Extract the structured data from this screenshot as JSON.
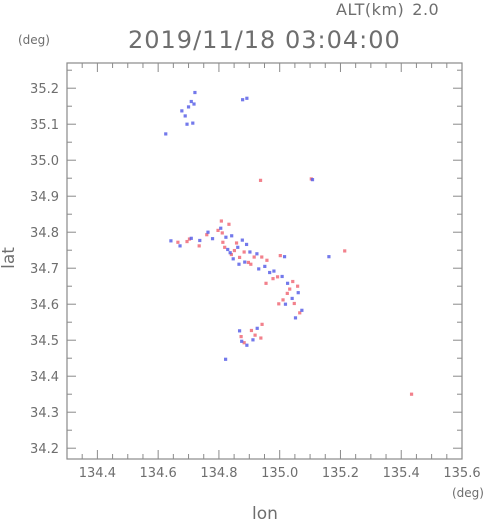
{
  "header": {
    "alt_label": "ALT(km)",
    "alt_value": "2.0",
    "datetime": "2019/11/18 03:04:00"
  },
  "axes": {
    "x_unit": "(deg)",
    "y_unit": "(deg)"
  },
  "chart_data": {
    "type": "scatter",
    "xlabel": "lon",
    "ylabel": "lat",
    "xlim": [
      134.3,
      135.6
    ],
    "ylim": [
      34.17,
      35.27
    ],
    "xticks": [
      134.4,
      134.6,
      134.8,
      135.0,
      135.2,
      135.4,
      135.6
    ],
    "xtick_labels": [
      "134.4",
      "134.6",
      "134.8",
      "135.0",
      "135.2",
      "135.4",
      "135.6"
    ],
    "yticks": [
      34.2,
      34.3,
      34.4,
      34.5,
      34.6,
      34.7,
      34.8,
      34.9,
      35.0,
      35.1,
      35.2
    ],
    "ytick_labels": [
      "34.2",
      "34.3",
      "34.4",
      "34.5",
      "34.6",
      "34.7",
      "34.8",
      "34.9",
      "35.0",
      "35.1",
      "35.2"
    ],
    "grid": false,
    "colors": {
      "positive": "#f06b78",
      "negative": "#5a62e8",
      "frame": "#8a8a8a"
    },
    "series": [
      {
        "color": "positive",
        "points": [
          [
            134.695,
            34.774
          ],
          [
            134.703,
            34.781
          ],
          [
            134.735,
            34.762
          ],
          [
            134.76,
            34.793
          ],
          [
            134.797,
            34.805
          ],
          [
            134.808,
            34.831
          ],
          [
            134.811,
            34.798
          ],
          [
            134.813,
            34.772
          ],
          [
            134.819,
            34.758
          ],
          [
            134.833,
            34.822
          ],
          [
            134.841,
            34.738
          ],
          [
            134.851,
            34.749
          ],
          [
            134.858,
            34.77
          ],
          [
            134.868,
            34.73
          ],
          [
            134.883,
            34.745
          ],
          [
            134.897,
            34.716
          ],
          [
            134.905,
            34.711
          ],
          [
            134.916,
            34.731
          ],
          [
            134.941,
            34.731
          ],
          [
            134.958,
            34.722
          ],
          [
            134.978,
            34.671
          ],
          [
            134.993,
            34.676
          ],
          [
            134.997,
            34.601
          ],
          [
            135.011,
            34.612
          ],
          [
            135.025,
            34.63
          ],
          [
            135.033,
            34.642
          ],
          [
            135.043,
            34.663
          ],
          [
            135.048,
            34.602
          ],
          [
            135.059,
            34.65
          ],
          [
            135.066,
            34.576
          ],
          [
            135.002,
            34.735
          ],
          [
            134.873,
            34.51
          ],
          [
            134.883,
            34.493
          ],
          [
            134.907,
            34.527
          ],
          [
            134.919,
            34.514
          ],
          [
            134.938,
            34.506
          ],
          [
            134.942,
            34.544
          ],
          [
            134.937,
            34.944
          ],
          [
            135.104,
            34.948
          ],
          [
            135.434,
            34.35
          ],
          [
            135.214,
            34.748
          ],
          [
            134.665,
            34.772
          ],
          [
            134.955,
            34.658
          ]
        ]
      },
      {
        "color": "negative",
        "points": [
          [
            134.678,
            35.137
          ],
          [
            134.689,
            35.123
          ],
          [
            134.7,
            35.148
          ],
          [
            134.709,
            35.163
          ],
          [
            134.718,
            35.156
          ],
          [
            134.721,
            35.188
          ],
          [
            134.714,
            35.103
          ],
          [
            134.695,
            35.1
          ],
          [
            134.878,
            35.168
          ],
          [
            134.892,
            35.172
          ],
          [
            134.625,
            35.073
          ],
          [
            134.642,
            34.776
          ],
          [
            134.672,
            34.762
          ],
          [
            134.709,
            34.783
          ],
          [
            134.737,
            34.777
          ],
          [
            134.779,
            34.782
          ],
          [
            134.806,
            34.811
          ],
          [
            134.823,
            34.786
          ],
          [
            134.829,
            34.752
          ],
          [
            134.837,
            34.743
          ],
          [
            134.847,
            34.726
          ],
          [
            134.862,
            34.758
          ],
          [
            134.877,
            34.778
          ],
          [
            134.891,
            34.766
          ],
          [
            134.902,
            34.745
          ],
          [
            134.925,
            34.74
          ],
          [
            134.931,
            34.698
          ],
          [
            134.951,
            34.705
          ],
          [
            134.967,
            34.688
          ],
          [
            134.981,
            34.692
          ],
          [
            135.008,
            34.677
          ],
          [
            135.026,
            34.658
          ],
          [
            135.061,
            34.632
          ],
          [
            135.041,
            34.616
          ],
          [
            135.019,
            34.6
          ],
          [
            135.073,
            34.583
          ],
          [
            135.052,
            34.562
          ],
          [
            134.868,
            34.526
          ],
          [
            134.875,
            34.497
          ],
          [
            134.892,
            34.486
          ],
          [
            134.912,
            34.501
          ],
          [
            134.926,
            34.533
          ],
          [
            134.822,
            34.447
          ],
          [
            135.108,
            34.946
          ],
          [
            135.162,
            34.732
          ],
          [
            135.016,
            34.732
          ],
          [
            134.866,
            34.711
          ],
          [
            134.764,
            34.8
          ],
          [
            134.842,
            34.79
          ],
          [
            134.885,
            34.717
          ]
        ]
      }
    ]
  }
}
